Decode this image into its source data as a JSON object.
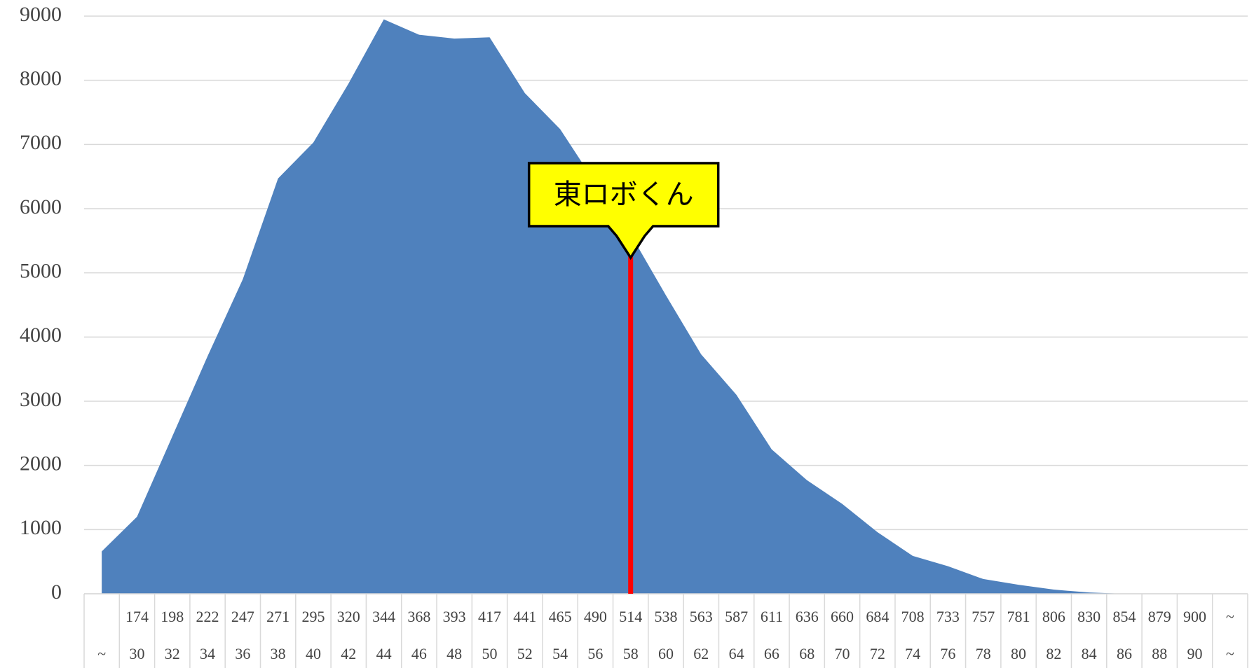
{
  "chart_data": {
    "type": "area",
    "color": "#4f81bd",
    "categories": [
      null,
      "174",
      "198",
      "222",
      "247",
      "271",
      "295",
      "320",
      "344",
      "368",
      "393",
      "417",
      "441",
      "465",
      "490",
      "514",
      "538",
      "563",
      "587",
      "611",
      "636",
      "660",
      "684",
      "708",
      "733",
      "757",
      "781",
      "806",
      "830",
      "854",
      "879",
      "900",
      "~"
    ],
    "categories_sub": [
      "~",
      "30",
      "32",
      "34",
      "36",
      "38",
      "40",
      "42",
      "44",
      "46",
      "48",
      "50",
      "52",
      "54",
      "56",
      "58",
      "60",
      "62",
      "64",
      "66",
      "68",
      "70",
      "72",
      "74",
      "76",
      "78",
      "80",
      "82",
      "84",
      "86",
      "88",
      "90",
      "~"
    ],
    "values": [
      660,
      1200,
      2450,
      3700,
      4900,
      6470,
      7030,
      7950,
      8950,
      8710,
      8650,
      8670,
      7800,
      7240,
      6400,
      5600,
      4650,
      3730,
      3100,
      2250,
      1770,
      1400,
      960,
      590,
      430,
      230,
      140,
      65,
      20,
      0,
      0,
      0,
      0
    ],
    "ylim": [
      0,
      9000
    ],
    "yticks": [
      0,
      1000,
      2000,
      3000,
      4000,
      5000,
      6000,
      7000,
      8000,
      9000
    ],
    "grid": true,
    "annotation": {
      "text": "東ロボくん",
      "category": "514",
      "color": "#ff0000"
    }
  }
}
